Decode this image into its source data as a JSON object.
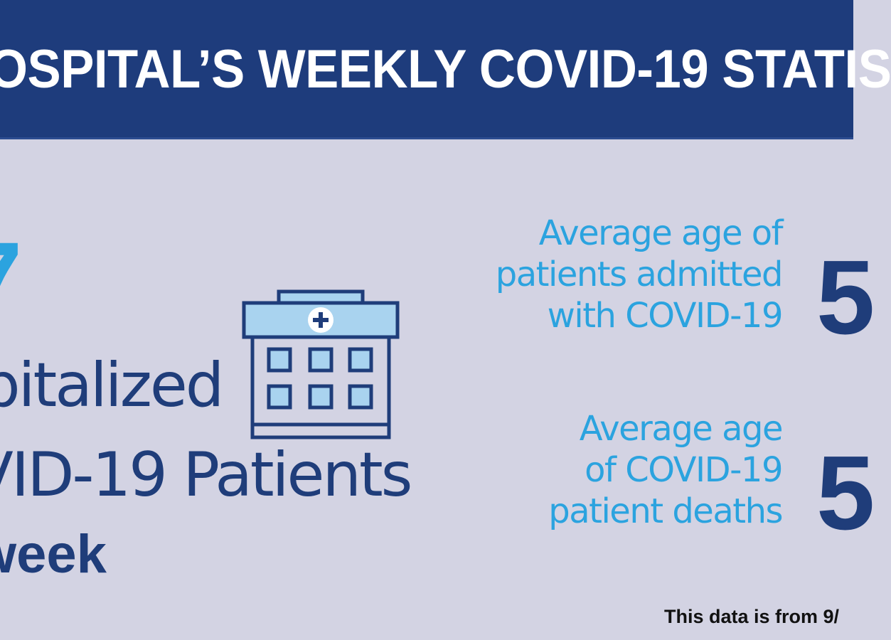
{
  "header": {
    "title": "OSPITAL’S WEEKLY COVID-19 STATIS"
  },
  "hospitalized": {
    "count": "7",
    "label_lines": [
      "pitalized",
      "VID-19 Patients",
      "week"
    ]
  },
  "stats": [
    {
      "label_lines": [
        "Average age of",
        "patients admitted",
        "with COVID-19"
      ],
      "value": "5"
    },
    {
      "label_lines": [
        "Average age",
        "of COVID-19",
        "patient deaths"
      ],
      "value": "5"
    }
  ],
  "footnote": "This data is from 9/",
  "icons": {
    "building": "hospital-building-icon",
    "cross": "medical-cross-icon"
  },
  "colors": {
    "header_bg": "#1e3c7c",
    "background": "#d3d3e3",
    "navy": "#1f3d7a",
    "light_blue": "#2ba3df",
    "icon_fill": "#a9d3ef"
  }
}
